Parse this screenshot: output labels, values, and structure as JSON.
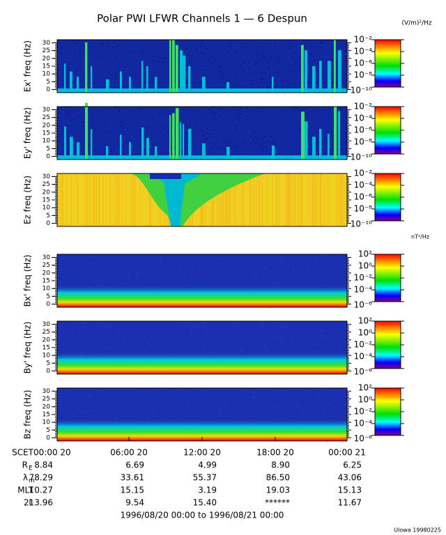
{
  "chart_data": {
    "type": "spectrogram",
    "title": "Polar PWI LFWR Channels 1 — 6 Despun",
    "e_units": "(V/m)²/Hz",
    "b_units": "nT²/Hz",
    "panels": [
      {
        "ylabel": "Ex' freq (Hz)",
        "ylim": [
          -2,
          32
        ],
        "yticks": [
          0,
          5,
          10,
          15,
          20,
          25,
          30
        ],
        "clim": [
          -10,
          -2
        ],
        "cticks": [
          {
            "value": -2,
            "label": "10⁻²"
          },
          {
            "value": -4,
            "label": "10⁻⁴"
          },
          {
            "value": -6,
            "label": "10⁻⁶"
          },
          {
            "value": -8,
            "label": "10⁻⁸"
          },
          {
            "value": -10,
            "label": "10⁻¹⁰"
          }
        ]
      },
      {
        "ylabel": "Ey' freq (Hz)",
        "ylim": [
          -2,
          32
        ],
        "yticks": [
          0,
          5,
          10,
          15,
          20,
          25,
          30
        ],
        "clim": [
          -10,
          -2
        ],
        "cticks": [
          {
            "value": -2,
            "label": "10⁻²"
          },
          {
            "value": -4,
            "label": "10⁻⁴"
          },
          {
            "value": -6,
            "label": "10⁻⁶"
          },
          {
            "value": -8,
            "label": "10⁻⁸"
          },
          {
            "value": -10,
            "label": "10⁻¹⁰"
          }
        ]
      },
      {
        "ylabel": "Ez freq (Hz)",
        "ylim": [
          -2,
          32
        ],
        "yticks": [
          0,
          5,
          10,
          15,
          20,
          25,
          30
        ],
        "clim": [
          -10,
          -2
        ],
        "cticks": [
          {
            "value": -2,
            "label": "10⁻²"
          },
          {
            "value": -4,
            "label": "10⁻⁴"
          },
          {
            "value": -6,
            "label": "10⁻⁶"
          },
          {
            "value": -8,
            "label": "10⁻⁸"
          },
          {
            "value": -10,
            "label": "10⁻¹⁰"
          }
        ]
      },
      {
        "ylabel": "Bx' freq (Hz)",
        "ylim": [
          -2,
          32
        ],
        "yticks": [
          0,
          5,
          10,
          15,
          20,
          25,
          30
        ],
        "clim": [
          -6,
          2
        ],
        "cticks": [
          {
            "value": 2,
            "label": "10²"
          },
          {
            "value": 0,
            "label": "10⁰"
          },
          {
            "value": -2,
            "label": "10⁻²"
          },
          {
            "value": -4,
            "label": "10⁻⁴"
          },
          {
            "value": -6,
            "label": "10⁻⁶"
          }
        ]
      },
      {
        "ylabel": "By' freq (Hz)",
        "ylim": [
          -2,
          32
        ],
        "yticks": [
          0,
          5,
          10,
          15,
          20,
          25,
          30
        ],
        "clim": [
          -6,
          2
        ],
        "cticks": [
          {
            "value": 2,
            "label": "10²"
          },
          {
            "value": 0,
            "label": "10⁰"
          },
          {
            "value": -2,
            "label": "10⁻²"
          },
          {
            "value": -4,
            "label": "10⁻⁴"
          },
          {
            "value": -6,
            "label": "10⁻⁶"
          }
        ]
      },
      {
        "ylabel": "Bz freq (Hz)",
        "ylim": [
          -2,
          32
        ],
        "yticks": [
          0,
          5,
          10,
          15,
          20,
          25,
          30
        ],
        "clim": [
          -6,
          2
        ],
        "cticks": [
          {
            "value": 2,
            "label": "10²"
          },
          {
            "value": 0,
            "label": "10⁰"
          },
          {
            "value": -2,
            "label": "10⁻²"
          },
          {
            "value": -4,
            "label": "10⁻⁴"
          },
          {
            "value": -6,
            "label": "10⁻⁶"
          }
        ]
      }
    ],
    "ephemeris": [
      {
        "label": "SCET",
        "values": [
          "00:00 20",
          "06:00 20",
          "12:00 20",
          "18:00 20",
          "00:00 21"
        ]
      },
      {
        "label": "R",
        "sub": "E",
        "values": [
          "8.84",
          "6.69",
          "4.99",
          "8.90",
          "6.25"
        ]
      },
      {
        "label": "λ",
        "sub": "m",
        "values": [
          "78.29",
          "33.61",
          "55.37",
          "86.50",
          "43.06"
        ]
      },
      {
        "label": "MLT",
        "values": [
          "10.27",
          "15.15",
          "3.19",
          "19.03",
          "15.13"
        ]
      },
      {
        "label": "L",
        "values": [
          "213.96",
          "9.54",
          "15.40",
          "******",
          "11.67"
        ]
      }
    ],
    "time_range": "1996/08/20 00:00 to 1996/08/21 00:00",
    "footer": "UIowa 19980225"
  }
}
